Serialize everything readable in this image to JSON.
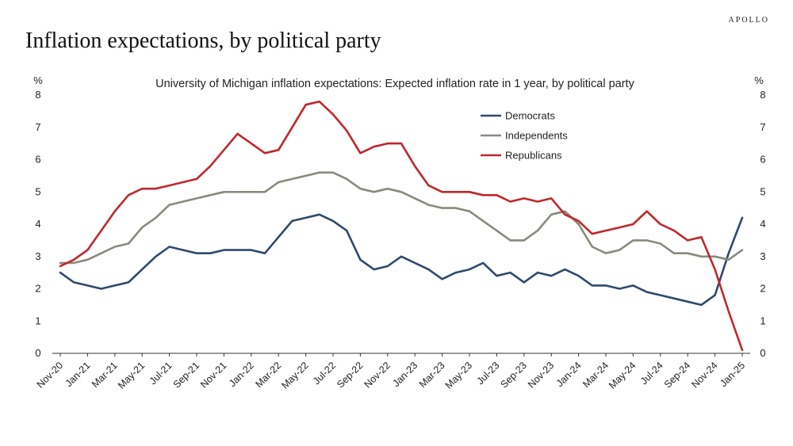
{
  "brand": "APOLLO",
  "page_title": "Inflation expectations, by political party",
  "chart_data": {
    "type": "line",
    "title": "University of Michigan inflation expectations: Expected inflation rate in 1 year, by political party",
    "ylabel_left": "%",
    "ylabel_right": "%",
    "ylim": [
      0,
      8
    ],
    "yticks": [
      0,
      1,
      2,
      3,
      4,
      5,
      6,
      7,
      8
    ],
    "xlabels": [
      "Nov-20",
      "Jan-21",
      "Mar-21",
      "May-21",
      "Jul-21",
      "Sep-21",
      "Nov-21",
      "Jan-22",
      "Mar-22",
      "May-22",
      "Jul-22",
      "Sep-22",
      "Nov-22",
      "Jan-23",
      "Mar-23",
      "May-23",
      "Jul-23",
      "Sep-23",
      "Nov-23",
      "Jan-24",
      "Mar-24",
      "May-24",
      "Jul-24",
      "Sep-24",
      "Nov-24",
      "Jan-25"
    ],
    "months": [
      "Nov-20",
      "Dec-20",
      "Jan-21",
      "Feb-21",
      "Mar-21",
      "Apr-21",
      "May-21",
      "Jun-21",
      "Jul-21",
      "Aug-21",
      "Sep-21",
      "Oct-21",
      "Nov-21",
      "Dec-21",
      "Jan-22",
      "Feb-22",
      "Mar-22",
      "Apr-22",
      "May-22",
      "Jun-22",
      "Jul-22",
      "Aug-22",
      "Sep-22",
      "Oct-22",
      "Nov-22",
      "Dec-22",
      "Jan-23",
      "Feb-23",
      "Mar-23",
      "Apr-23",
      "May-23",
      "Jun-23",
      "Jul-23",
      "Aug-23",
      "Sep-23",
      "Oct-23",
      "Nov-23",
      "Dec-23",
      "Jan-24",
      "Feb-24",
      "Mar-24",
      "Apr-24",
      "May-24",
      "Jun-24",
      "Jul-24",
      "Aug-24",
      "Sep-24",
      "Oct-24",
      "Nov-24",
      "Dec-24",
      "Jan-25"
    ],
    "legend_position": "top-right",
    "series": [
      {
        "name": "Democrats",
        "color": "#2e4a6b",
        "values": [
          2.5,
          2.2,
          2.1,
          2.0,
          2.1,
          2.2,
          2.6,
          3.0,
          3.3,
          3.2,
          3.1,
          3.1,
          3.2,
          3.2,
          3.2,
          3.1,
          3.6,
          4.1,
          4.2,
          4.3,
          4.1,
          3.8,
          2.9,
          2.6,
          2.7,
          3.0,
          2.8,
          2.6,
          2.3,
          2.5,
          2.6,
          2.8,
          2.4,
          2.5,
          2.2,
          2.5,
          2.4,
          2.6,
          2.4,
          2.1,
          2.1,
          2.0,
          2.1,
          1.9,
          1.8,
          1.7,
          1.6,
          1.5,
          1.8,
          3.1,
          4.2
        ]
      },
      {
        "name": "Independents",
        "color": "#8a8a7c",
        "values": [
          2.8,
          2.8,
          2.9,
          3.1,
          3.3,
          3.4,
          3.9,
          4.2,
          4.6,
          4.7,
          4.8,
          4.9,
          5.0,
          5.0,
          5.0,
          5.0,
          5.3,
          5.4,
          5.5,
          5.6,
          5.6,
          5.4,
          5.1,
          5.0,
          5.1,
          5.0,
          4.8,
          4.6,
          4.5,
          4.5,
          4.4,
          4.1,
          3.8,
          3.5,
          3.5,
          3.8,
          4.3,
          4.4,
          4.0,
          3.3,
          3.1,
          3.2,
          3.5,
          3.5,
          3.4,
          3.1,
          3.1,
          3.0,
          3.0,
          2.9,
          3.2
        ]
      },
      {
        "name": "Republicans",
        "color": "#c0272d",
        "values": [
          2.7,
          2.9,
          3.2,
          3.8,
          4.4,
          4.9,
          5.1,
          5.1,
          5.2,
          5.3,
          5.4,
          5.8,
          6.3,
          6.8,
          6.5,
          6.2,
          6.3,
          7.0,
          7.7,
          7.8,
          7.4,
          6.9,
          6.2,
          6.4,
          6.5,
          6.5,
          5.8,
          5.2,
          5.0,
          5.0,
          5.0,
          4.9,
          4.9,
          4.7,
          4.8,
          4.7,
          4.8,
          4.3,
          4.1,
          3.7,
          3.8,
          3.9,
          4.0,
          4.4,
          4.0,
          3.8,
          3.5,
          3.6,
          2.6,
          1.3,
          0.1
        ]
      }
    ]
  }
}
